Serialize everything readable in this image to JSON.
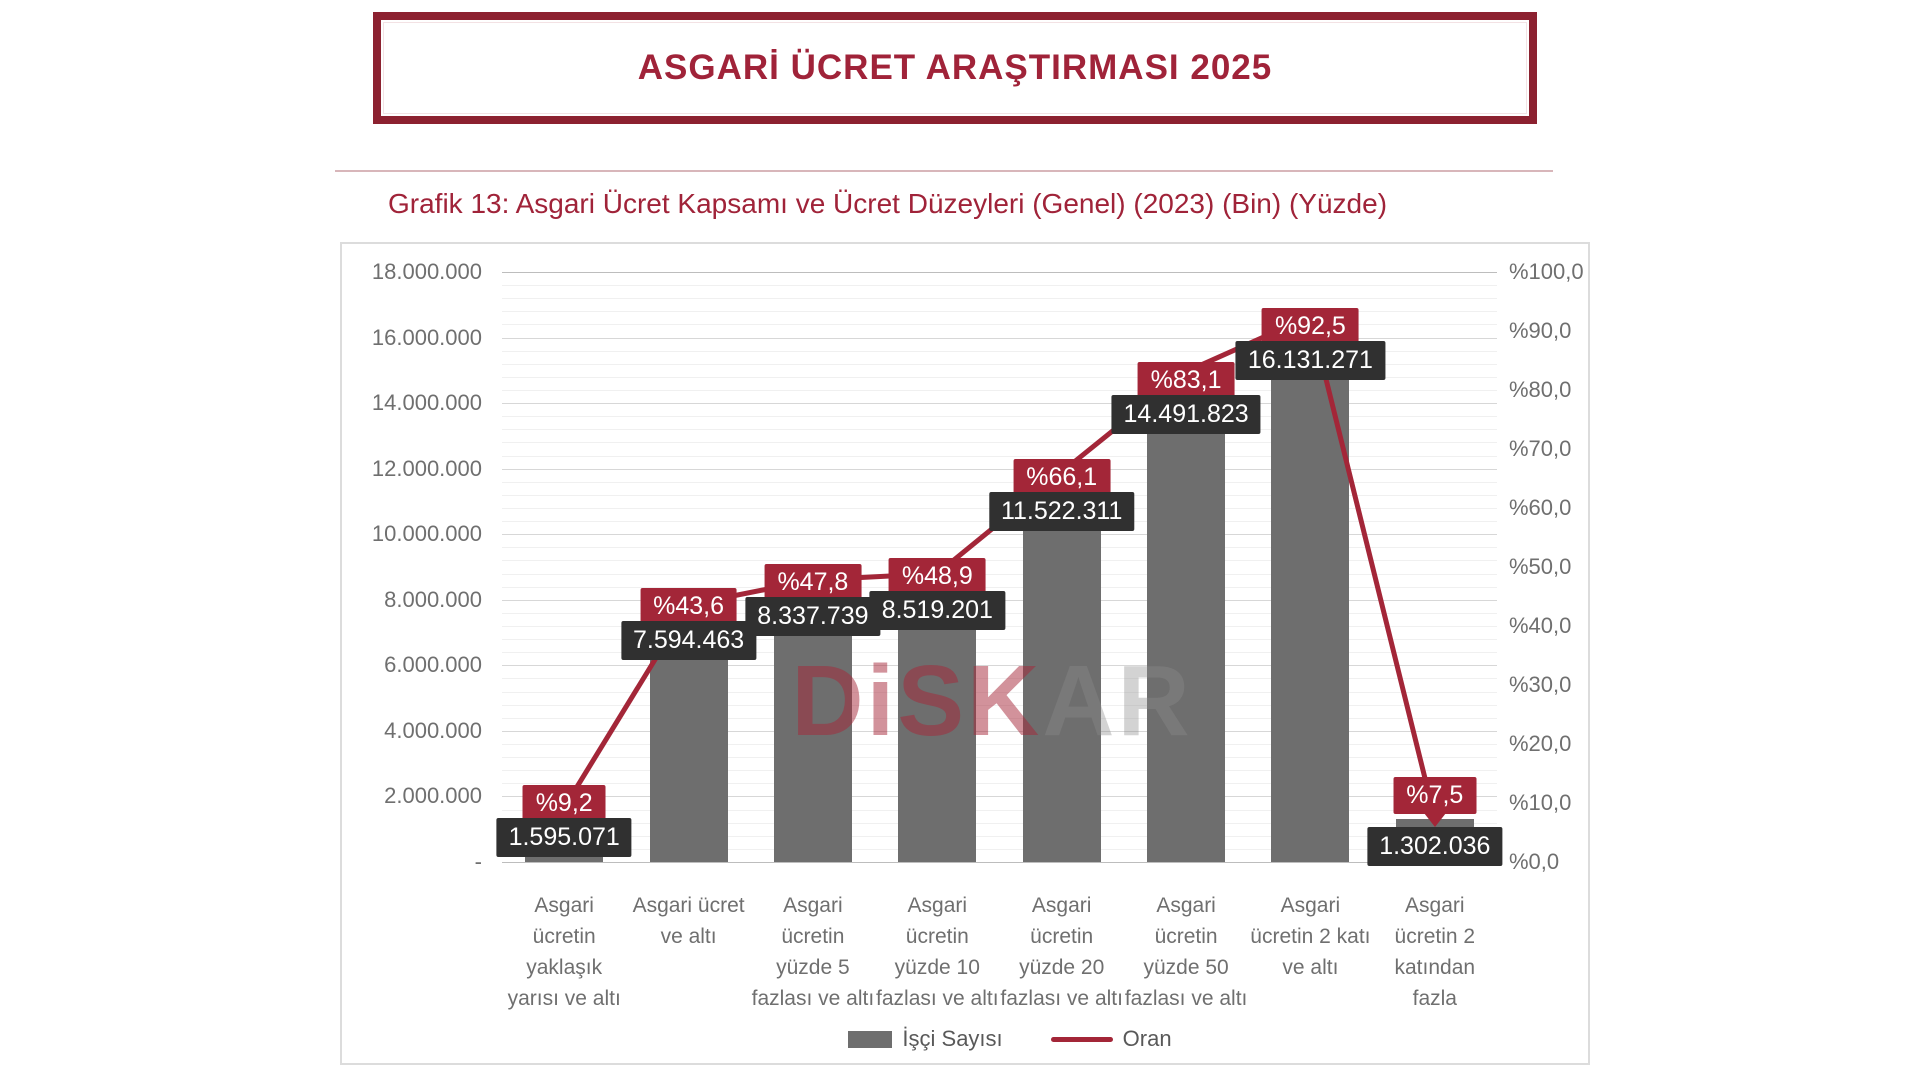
{
  "header": {
    "title": "ASGARİ ÜCRET ARAŞTIRMASI 2025"
  },
  "subtitle": "Grafik 13: Asgari Ücret Kapsamı ve Ücret Düzeyleri (Genel) (2023) (Bin) (Yüzde)",
  "watermark": {
    "red_part": "DiSK",
    "gray_part": "AR"
  },
  "colors": {
    "accent_red": "#a32638",
    "title_border": "#8c2130",
    "bar_gray": "#6e6e6e",
    "value_label_bg": "#303030",
    "axis_text": "#6f6f6f"
  },
  "legend": {
    "items": [
      {
        "label": "İşçi Sayısı",
        "swatch": "bar-swatch"
      },
      {
        "label": "Oran",
        "swatch": "line-swatch"
      }
    ]
  },
  "chart_data": {
    "type": "bar",
    "combo": "bar+line",
    "title": "Grafik 13: Asgari Ücret Kapsamı ve Ücret Düzeyleri (Genel) (2023) (Bin) (Yüzde)",
    "categories": [
      "Asgari ücretin yaklaşık yarısı ve altı",
      "Asgari ücret ve altı",
      "Asgari ücretin yüzde 5 fazlası ve altı",
      "Asgari ücretin yüzde 10 fazlası ve altı",
      "Asgari ücretin yüzde 20 fazlası ve altı",
      "Asgari ücretin yüzde 50 fazlası ve altı",
      "Asgari ücretin 2 katı ve altı",
      "Asgari ücretin 2 katından fazla"
    ],
    "category_lines": [
      [
        "Asgari",
        "ücretin",
        "yaklaşık",
        "yarısı ve altı"
      ],
      [
        "Asgari ücret",
        "ve altı"
      ],
      [
        "Asgari",
        "ücretin",
        "yüzde 5",
        "fazlası ve altı"
      ],
      [
        "Asgari",
        "ücretin",
        "yüzde 10",
        "fazlası ve altı"
      ],
      [
        "Asgari",
        "ücretin",
        "yüzde 20",
        "fazlası ve altı"
      ],
      [
        "Asgari",
        "ücretin",
        "yüzde 50",
        "fazlası ve altı"
      ],
      [
        "Asgari",
        "ücretin 2 katı",
        "ve altı"
      ],
      [
        "Asgari",
        "ücretin 2",
        "katından",
        "fazla"
      ]
    ],
    "series": [
      {
        "name": "İşçi Sayısı",
        "type": "bar",
        "axis": "left",
        "values": [
          1595071,
          7594463,
          8337739,
          8519201,
          11522311,
          14491823,
          16131271,
          1302036
        ],
        "labels": [
          "1.595.071",
          "7.594.463",
          "8.337.739",
          "8.519.201",
          "11.522.311",
          "14.491.823",
          "16.131.271",
          "1.302.036"
        ]
      },
      {
        "name": "Oran",
        "type": "line",
        "axis": "right",
        "values": [
          9.2,
          43.6,
          47.8,
          48.9,
          66.1,
          83.1,
          92.5,
          7.5
        ],
        "labels": [
          "%9,2",
          "%43,6",
          "%47,8",
          "%48,9",
          "%66,1",
          "%83,1",
          "%92,5",
          "%7,5"
        ]
      }
    ],
    "left_axis": {
      "min": 0,
      "max": 18000000,
      "ticks": [
        "18.000.000",
        "16.000.000",
        "14.000.000",
        "12.000.000",
        "10.000.000",
        "8.000.000",
        "6.000.000",
        "4.000.000",
        "2.000.000",
        "-"
      ]
    },
    "right_axis": {
      "min": 0,
      "max": 100,
      "ticks": [
        "%100,0",
        "%90,0",
        "%80,0",
        "%70,0",
        "%60,0",
        "%50,0",
        "%40,0",
        "%30,0",
        "%20,0",
        "%10,0",
        "%0,0"
      ]
    },
    "grid": true,
    "legend_position": "bottom"
  }
}
